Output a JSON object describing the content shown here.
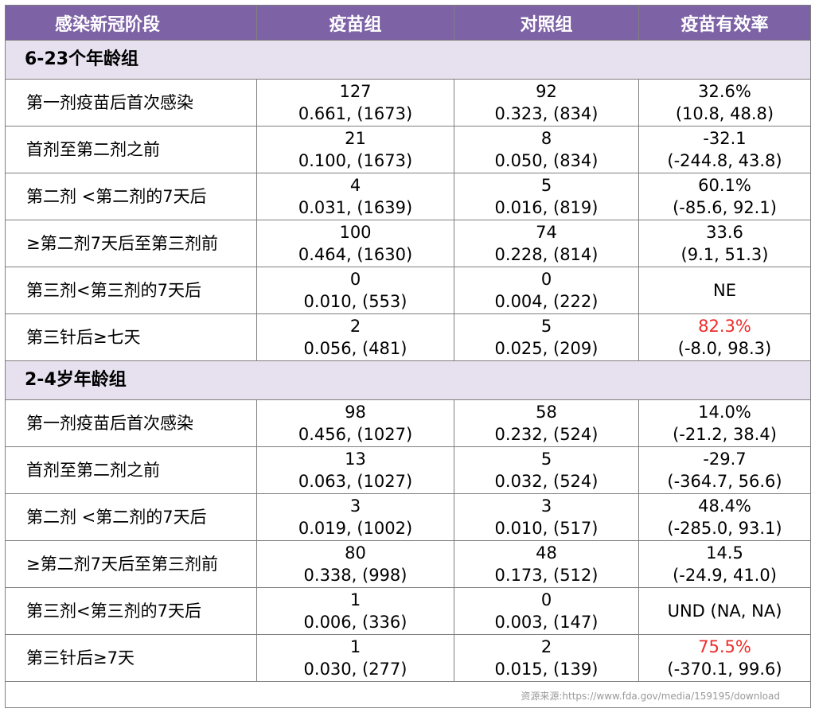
{
  "header": [
    "感染新冠阶段",
    "疫苗组",
    "对照组",
    "疫苗有效率"
  ],
  "sections": [
    {
      "title": "6-23个年龄组",
      "rows": [
        {
          "label": "第一剂疫苗后首次感染",
          "vaccine": [
            "127",
            "0.661, (1673)"
          ],
          "control": [
            "92",
            "0.323, (834)"
          ],
          "efficacy": [
            "32.6%",
            "(10.8, 48.8)"
          ],
          "highlight": false
        },
        {
          "label": "首剂至第二剂之前",
          "vaccine": [
            "21",
            "0.100, (1673)"
          ],
          "control": [
            "8",
            "0.050, (834)"
          ],
          "efficacy": [
            "-32.1",
            "(-244.8, 43.8)"
          ],
          "highlight": false
        },
        {
          "label": "第二剂  <第二剂的7天后",
          "vaccine": [
            "4",
            "0.031, (1639)"
          ],
          "control": [
            "5",
            "0.016, (819)"
          ],
          "efficacy": [
            "60.1%",
            "(-85.6, 92.1)"
          ],
          "highlight": false
        },
        {
          "label": "≥第二剂7天后至第三剂前",
          "vaccine": [
            "100",
            "0.464, (1630)"
          ],
          "control": [
            "74",
            "0.228, (814)"
          ],
          "efficacy": [
            "33.6",
            "(9.1, 51.3)"
          ],
          "highlight": false
        },
        {
          "label": "第三剂<第三剂的7天后",
          "vaccine": [
            "0",
            "0.010, (553)"
          ],
          "control": [
            "0",
            "0.004, (222)"
          ],
          "efficacy": [
            "NE"
          ],
          "highlight": false
        },
        {
          "label": "第三针后≥七天",
          "vaccine": [
            "2",
            "0.056, (481)"
          ],
          "control": [
            "5",
            "0.025, (209)"
          ],
          "efficacy": [
            "82.3%",
            "(-8.0, 98.3)"
          ],
          "highlight": true
        }
      ]
    },
    {
      "title": "2-4岁年龄组",
      "rows": [
        {
          "label": "第一剂疫苗后首次感染",
          "vaccine": [
            "98",
            "0.456, (1027)"
          ],
          "control": [
            "58",
            "0.232, (524)"
          ],
          "efficacy": [
            "14.0%",
            "(-21.2, 38.4)"
          ],
          "highlight": false
        },
        {
          "label": "首剂至第二剂之前",
          "vaccine": [
            "13",
            "0.063, (1027)"
          ],
          "control": [
            "5",
            "0.032, (524)"
          ],
          "efficacy": [
            "-29.7",
            "(-364.7, 56.6)"
          ],
          "highlight": false
        },
        {
          "label": "第二剂  <第二剂的7天后",
          "vaccine": [
            "3",
            "0.019, (1002)"
          ],
          "control": [
            "3",
            "0.010, (517)"
          ],
          "efficacy": [
            "48.4%",
            "(-285.0, 93.1)"
          ],
          "highlight": false
        },
        {
          "label": "≥第二剂7天后至第三剂前",
          "vaccine": [
            "80",
            "0.338, (998)"
          ],
          "control": [
            "48",
            "0.173, (512)"
          ],
          "efficacy": [
            "14.5",
            "(-24.9, 41.0)"
          ],
          "highlight": false
        },
        {
          "label": "第三剂<第三剂的7天后",
          "vaccine": [
            "1",
            "0.006, (336)"
          ],
          "control": [
            "0",
            "0.003, (147)"
          ],
          "efficacy": [
            "UND (NA, NA)"
          ],
          "highlight": false
        },
        {
          "label": "第三针后≥7天",
          "vaccine": [
            "1",
            "0.030, (277)"
          ],
          "control": [
            "2",
            "0.015, (139)"
          ],
          "efficacy": [
            "75.5%",
            "(-370.1, 99.6)"
          ],
          "highlight": true
        }
      ]
    }
  ],
  "footer": "资源来源:https://www.fda.gov/media/159195/download",
  "colors": {
    "header_bg": "#7d62a6",
    "section_bg": "#e7e1ef",
    "highlight": "#ee2b2b",
    "border": "#7f7f7f"
  }
}
